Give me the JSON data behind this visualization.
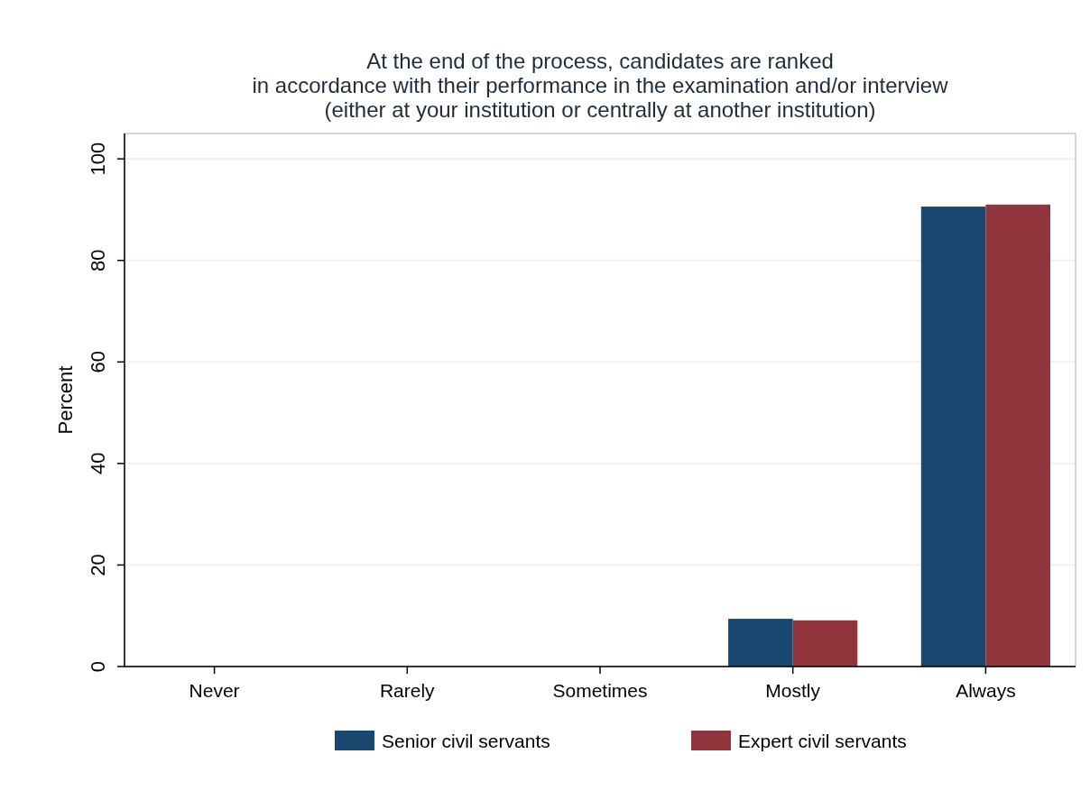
{
  "chart_data": {
    "type": "bar",
    "title": "At the end of the process, candidates are ranked\nin accordance with their performance in the examination and/or interview\n(either at your institution or centrally at another institution)",
    "ylabel": "Percent",
    "categories": [
      "Never",
      "Rarely",
      "Sometimes",
      "Mostly",
      "Always"
    ],
    "series": [
      {
        "name": "Senior civil servants",
        "color": "#1a476f",
        "values": [
          0,
          0,
          0,
          9.4,
          90.6
        ]
      },
      {
        "name": "Expert civil servants",
        "color": "#90353b",
        "values": [
          0,
          0,
          0,
          9.1,
          91.0
        ]
      }
    ],
    "ylim": [
      0,
      105
    ],
    "yticks": [
      0,
      20,
      40,
      60,
      80,
      100
    ],
    "grid": "y",
    "legend": "bottom"
  }
}
